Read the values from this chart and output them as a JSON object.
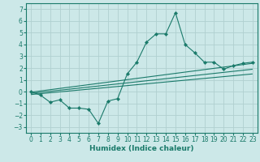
{
  "title": "",
  "xlabel": "Humidex (Indice chaleur)",
  "background_color": "#cce8e8",
  "line_color": "#1a7a6a",
  "grid_color": "#b0d0d0",
  "xlim": [
    -0.5,
    23.5
  ],
  "ylim": [
    -3.5,
    7.5
  ],
  "xticks": [
    0,
    1,
    2,
    3,
    4,
    5,
    6,
    7,
    8,
    9,
    10,
    11,
    12,
    13,
    14,
    15,
    16,
    17,
    18,
    19,
    20,
    21,
    22,
    23
  ],
  "yticks": [
    -3,
    -2,
    -1,
    0,
    1,
    2,
    3,
    4,
    5,
    6,
    7
  ],
  "main_x": [
    0,
    1,
    2,
    3,
    4,
    5,
    6,
    7,
    8,
    9,
    10,
    11,
    12,
    13,
    14,
    15,
    16,
    17,
    18,
    19,
    20,
    21,
    22,
    23
  ],
  "main_y": [
    0.0,
    -0.3,
    -0.9,
    -0.7,
    -1.4,
    -1.4,
    -1.5,
    -2.7,
    -0.8,
    -0.6,
    1.5,
    2.5,
    4.2,
    4.9,
    4.9,
    6.7,
    4.0,
    3.3,
    2.5,
    2.5,
    1.9,
    2.2,
    2.4,
    2.5
  ],
  "reg_lines": [
    {
      "x": [
        0,
        23
      ],
      "y": [
        -0.05,
        2.4
      ]
    },
    {
      "x": [
        0,
        23
      ],
      "y": [
        -0.15,
        1.9
      ]
    },
    {
      "x": [
        0,
        23
      ],
      "y": [
        -0.25,
        1.5
      ]
    }
  ],
  "tick_fontsize": 5.5,
  "xlabel_fontsize": 6.5
}
